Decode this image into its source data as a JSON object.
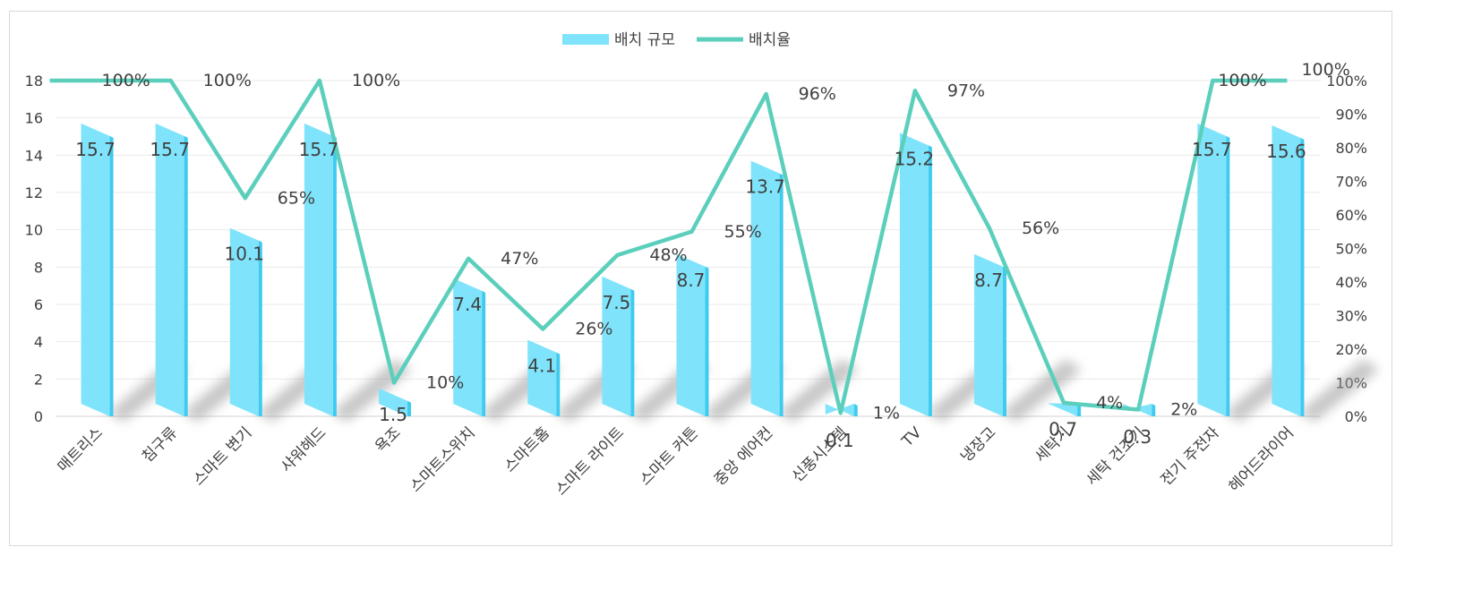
{
  "chart_data": {
    "type": "bar+line",
    "categories": [
      "매트리스",
      "침구류",
      "스마트 변기",
      "샤워헤드",
      "욕조",
      "스마트스위치",
      "스마트홈",
      "스마트 라이트",
      "스마트 커튼",
      "중앙 에어컨",
      "신풍시스템",
      "TV",
      "냉장고",
      "세탁기",
      "세탁 건조기",
      "전기 주전자",
      "헤어드라이어"
    ],
    "series": [
      {
        "name": "배치 규모",
        "type": "bar",
        "axis": "left",
        "values": [
          15.7,
          15.7,
          10.1,
          15.7,
          1.5,
          7.4,
          4.1,
          7.5,
          8.7,
          13.7,
          0.1,
          15.2,
          8.7,
          0.7,
          0.3,
          15.7,
          15.6
        ],
        "labels": [
          "15.7",
          "15.7",
          "10.1",
          "15.7",
          "1.5",
          "7.4",
          "4.1",
          "7.5",
          "8.7",
          "13.7",
          "0.1",
          "15.2",
          "8.7",
          "0.7",
          "0.3",
          "15.7",
          "15.6"
        ]
      },
      {
        "name": "배치율",
        "type": "line",
        "axis": "right",
        "values": [
          100,
          100,
          65,
          100,
          10,
          47,
          26,
          48,
          55,
          96,
          1,
          97,
          56,
          4,
          2,
          100,
          100
        ],
        "labels": [
          "100%",
          "100%",
          "65%",
          "100%",
          "10%",
          "47%",
          "26%",
          "48%",
          "55%",
          "96%",
          "1%",
          "97%",
          "56%",
          "4%",
          "2%",
          "100%",
          "100%"
        ]
      }
    ],
    "y_left": {
      "min": 0,
      "max": 18,
      "ticks": [
        "0",
        "2",
        "4",
        "6",
        "8",
        "10",
        "12",
        "14",
        "16",
        "18"
      ]
    },
    "y_right": {
      "min": 0,
      "max": 100,
      "ticks": [
        "0%",
        "10%",
        "20%",
        "30%",
        "40%",
        "50%",
        "60%",
        "70%",
        "80%",
        "90%",
        "100%"
      ]
    },
    "legend": {
      "position": "top-center",
      "items": [
        "배치 규모",
        "배치율"
      ]
    },
    "colors": {
      "bar": "#7fe4fb",
      "bar_side": "#3fcbef",
      "bar_top": "#b6f1fd",
      "line": "#5bcfbc",
      "grid": "#eaeaea",
      "text": "#404040"
    }
  }
}
